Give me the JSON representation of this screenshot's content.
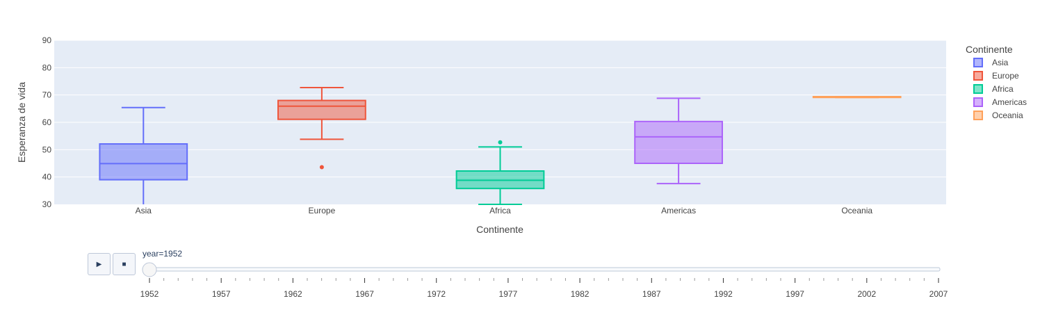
{
  "chart_data": {
    "type": "box",
    "title": "",
    "xlabel": "Continente",
    "ylabel": "Esperanza de vida",
    "ylim": [
      30,
      90
    ],
    "yticks": [
      30,
      40,
      50,
      60,
      70,
      80,
      90
    ],
    "grid": true,
    "legend_title": "Continente",
    "legend_placement": "right",
    "categories": [
      "Asia",
      "Europe",
      "Africa",
      "Americas",
      "Oceania"
    ],
    "series": [
      {
        "name": "Asia",
        "color": "#636efa",
        "lowerfence": 28.8,
        "q1": 39.0,
        "median": 44.9,
        "q3": 52.1,
        "upperfence": 65.4,
        "outliers": []
      },
      {
        "name": "Europe",
        "color": "#ef553b",
        "lowerfence": 53.8,
        "q1": 61.1,
        "median": 65.9,
        "q3": 68.0,
        "upperfence": 72.7,
        "outliers": [
          43.6
        ]
      },
      {
        "name": "Africa",
        "color": "#00cc96",
        "lowerfence": 30.0,
        "q1": 35.8,
        "median": 38.8,
        "q3": 42.2,
        "upperfence": 51.0,
        "outliers": [
          52.7
        ]
      },
      {
        "name": "Americas",
        "color": "#ab63fa",
        "lowerfence": 37.6,
        "q1": 45.0,
        "median": 54.7,
        "q3": 60.3,
        "upperfence": 68.8,
        "outliers": []
      },
      {
        "name": "Oceania",
        "color": "#ffa15a",
        "lowerfence": 69.1,
        "q1": 69.1,
        "median": 69.3,
        "q3": 69.4,
        "upperfence": 69.4,
        "outliers": []
      }
    ]
  },
  "slider": {
    "label": "year=1952",
    "current_value": 1952,
    "ticks": [
      "1952",
      "1957",
      "1962",
      "1967",
      "1972",
      "1977",
      "1982",
      "1987",
      "1992",
      "1997",
      "2002",
      "2007"
    ]
  },
  "controls": {
    "play_icon": "▶",
    "stop_icon": "■"
  }
}
